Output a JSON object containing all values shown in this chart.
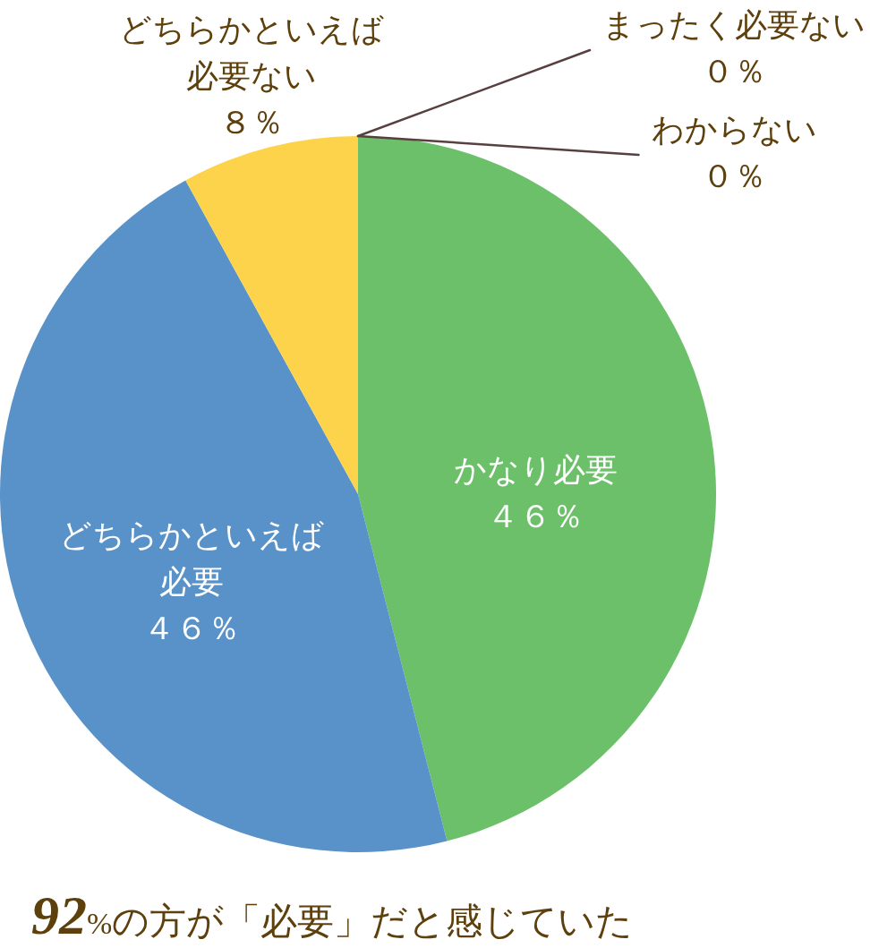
{
  "chart_data": {
    "type": "pie",
    "categories": [
      "かなり必要",
      "どちらかといえば必要",
      "どちらかといえば必要ない",
      "まったく必要ない",
      "わからない"
    ],
    "values": [
      46,
      46,
      8,
      0,
      0
    ],
    "colors": [
      "#6cc06a",
      "#5892c9",
      "#fcd34b",
      "#8c7a6b",
      "#b0b0b0"
    ],
    "value_labels": [
      "４６％",
      "４６％",
      "８％",
      "０％",
      "０％"
    ],
    "annotations": [
      "92%の方が「必要」だと感じていた"
    ]
  }
}
